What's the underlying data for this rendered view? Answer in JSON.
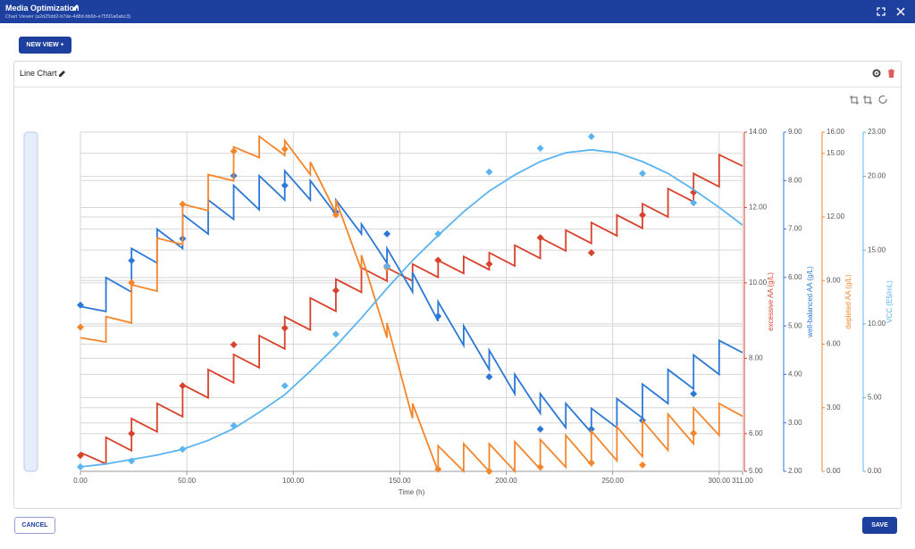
{
  "header": {
    "title": "Media Optimization",
    "subtitle": "Chart Viewer (a2d25dd2-b7de-4d8d-bb6b-e755f1a6abc3)"
  },
  "buttons": {
    "new_view": "NEW VIEW +",
    "cancel": "CANCEL",
    "save": "SAVE"
  },
  "card": {
    "title": "Line Chart"
  },
  "chart_data": {
    "type": "line",
    "grid": true,
    "xlabel": "Time (h)",
    "xlim": [
      0,
      311
    ],
    "xticks": [
      {
        "value": 0,
        "label": "0.00"
      },
      {
        "value": 50,
        "label": "50.00"
      },
      {
        "value": 100,
        "label": "100.00"
      },
      {
        "value": 150,
        "label": "150.00"
      },
      {
        "value": 200,
        "label": "200.00"
      },
      {
        "value": 250,
        "label": "250.00"
      },
      {
        "value": 300,
        "label": "300.00"
      },
      {
        "value": 311,
        "label": "311.00"
      }
    ],
    "axes": [
      {
        "label": "excessive AA (g/L)",
        "color": "#d9412b",
        "ylim": [
          5,
          14
        ],
        "yticks": [
          {
            "value": 5,
            "label": "5.00"
          },
          {
            "value": 6,
            "label": "6.00"
          },
          {
            "value": 8,
            "label": "8.00"
          },
          {
            "value": 10,
            "label": "10.00"
          },
          {
            "value": 12,
            "label": "12.00"
          },
          {
            "value": 14,
            "label": "14.00"
          }
        ]
      },
      {
        "label": "well-balanced AA (g/L)",
        "color": "#2b78d6",
        "ylim": [
          2,
          9
        ],
        "yticks": [
          {
            "value": 2,
            "label": "2.00"
          },
          {
            "value": 3,
            "label": "3.00"
          },
          {
            "value": 4,
            "label": "4.00"
          },
          {
            "value": 5,
            "label": "5.00"
          },
          {
            "value": 6,
            "label": "6.00"
          },
          {
            "value": 7,
            "label": "7.00"
          },
          {
            "value": 8,
            "label": "8.00"
          },
          {
            "value": 9,
            "label": "9.00"
          }
        ]
      },
      {
        "label": "depleted AA (g/L)",
        "color": "#f5852a",
        "ylim": [
          0,
          16
        ],
        "yticks": [
          {
            "value": 0,
            "label": "0.00"
          },
          {
            "value": 3,
            "label": "3.00"
          },
          {
            "value": 6,
            "label": "6.00"
          },
          {
            "value": 9,
            "label": "9.00"
          },
          {
            "value": 12,
            "label": "12.00"
          },
          {
            "value": 15,
            "label": "15.00"
          },
          {
            "value": 16,
            "label": "16.00"
          }
        ]
      },
      {
        "label": "VCC (E5/mL)",
        "color": "#5ab4f0",
        "ylim": [
          0,
          23
        ],
        "yticks": [
          {
            "value": 0,
            "label": "0.00"
          },
          {
            "value": 5,
            "label": "5.00"
          },
          {
            "value": 10,
            "label": "10.00"
          },
          {
            "value": 15,
            "label": "15.00"
          },
          {
            "value": 20,
            "label": "20.00"
          },
          {
            "value": 23,
            "label": "23.00"
          }
        ]
      }
    ],
    "x": [
      0,
      12,
      12,
      24,
      24,
      36,
      36,
      48,
      48,
      60,
      60,
      72,
      72,
      84,
      84,
      96,
      96,
      108,
      108,
      120,
      120,
      132,
      132,
      144,
      144,
      156,
      156,
      168,
      168,
      180,
      180,
      192,
      192,
      204,
      204,
      216,
      216,
      228,
      228,
      240,
      240,
      252,
      252,
      264,
      264,
      276,
      276,
      288,
      288,
      300,
      300,
      311
    ],
    "sample_x": [
      0,
      24,
      48,
      72,
      96,
      120,
      144,
      168,
      192,
      216,
      240,
      264,
      288
    ],
    "series": [
      {
        "color": "#d9412b",
        "axis": 0,
        "values": [
          5.5,
          5.2,
          5.9,
          5.55,
          6.4,
          6.05,
          6.8,
          6.45,
          7.3,
          6.95,
          7.7,
          7.35,
          8.1,
          7.75,
          8.6,
          8.25,
          9.1,
          8.75,
          9.6,
          9.25,
          10.1,
          9.75,
          10.4,
          10.05,
          10.4,
          10.05,
          10.5,
          10.15,
          10.6,
          10.25,
          10.7,
          10.35,
          10.8,
          10.45,
          11.0,
          10.65,
          11.2,
          10.85,
          11.4,
          11.05,
          11.6,
          11.25,
          11.8,
          11.45,
          12.1,
          11.75,
          12.5,
          12.15,
          12.9,
          12.55,
          13.4,
          13.1
        ],
        "measured": [
          5.42,
          6.0,
          7.27,
          8.36,
          8.8,
          9.8,
          10.45,
          10.6,
          10.5,
          11.2,
          10.8,
          11.8,
          12.4
        ]
      },
      {
        "color": "#2b78d6",
        "axis": 1,
        "values": [
          5.4,
          5.3,
          6.0,
          5.7,
          6.6,
          6.3,
          7.0,
          6.6,
          7.3,
          6.9,
          7.6,
          7.2,
          7.9,
          7.4,
          8.1,
          7.6,
          8.2,
          7.6,
          8.0,
          7.3,
          7.6,
          6.9,
          7.1,
          6.3,
          6.6,
          5.7,
          6.1,
          5.1,
          5.5,
          4.6,
          5.0,
          4.1,
          4.5,
          3.6,
          4.0,
          3.2,
          3.6,
          2.9,
          3.4,
          2.8,
          3.3,
          2.9,
          3.5,
          3.1,
          3.8,
          3.4,
          4.1,
          3.7,
          4.4,
          4.0,
          4.7,
          4.45
        ],
        "measured": [
          5.43,
          6.35,
          6.8,
          8.1,
          7.9,
          7.35,
          6.9,
          5.2,
          3.95,
          2.87,
          2.87,
          3.05,
          3.6
        ]
      },
      {
        "color": "#f5852a",
        "axis": 2,
        "values": [
          6.3,
          6.1,
          7.3,
          7.0,
          8.8,
          8.5,
          11.0,
          10.7,
          12.6,
          12.3,
          14.0,
          13.7,
          15.3,
          14.8,
          15.8,
          14.9,
          15.6,
          14.0,
          14.6,
          12.2,
          12.8,
          9.5,
          10.2,
          6.3,
          7.0,
          2.5,
          3.2,
          0.0,
          1.2,
          0.0,
          1.3,
          0.0,
          1.3,
          0.0,
          1.4,
          0.1,
          1.5,
          0.2,
          1.7,
          0.3,
          1.9,
          0.5,
          2.1,
          0.7,
          2.4,
          1.0,
          2.7,
          1.3,
          3.0,
          1.7,
          3.2,
          2.6
        ],
        "measured": [
          6.8,
          8.9,
          12.6,
          15.1,
          15.2,
          12.1,
          9.6,
          0.1,
          0.0,
          0.2,
          0.4,
          0.3,
          1.8
        ]
      },
      {
        "color": "#5ab4f0",
        "axis": 3,
        "values": [
          0.3,
          0.5,
          0.5,
          0.8,
          0.8,
          1.1,
          1.1,
          1.5,
          1.5,
          2.1,
          2.1,
          2.9,
          2.9,
          4.0,
          4.0,
          5.2,
          5.2,
          6.8,
          6.8,
          8.5,
          8.5,
          10.4,
          10.4,
          12.4,
          12.4,
          14.3,
          14.3,
          16.0,
          16.0,
          17.6,
          17.6,
          19.0,
          19.0,
          20.1,
          20.1,
          21.0,
          21.0,
          21.6,
          21.6,
          21.8,
          21.8,
          21.6,
          21.6,
          21.0,
          21.0,
          20.2,
          20.2,
          19.1,
          19.1,
          17.9,
          17.9,
          16.7
        ],
        "measured": [
          0.3,
          0.7,
          1.5,
          3.1,
          5.8,
          9.3,
          13.9,
          16.1,
          20.3,
          21.9,
          22.7,
          20.2,
          18.2
        ]
      }
    ]
  }
}
